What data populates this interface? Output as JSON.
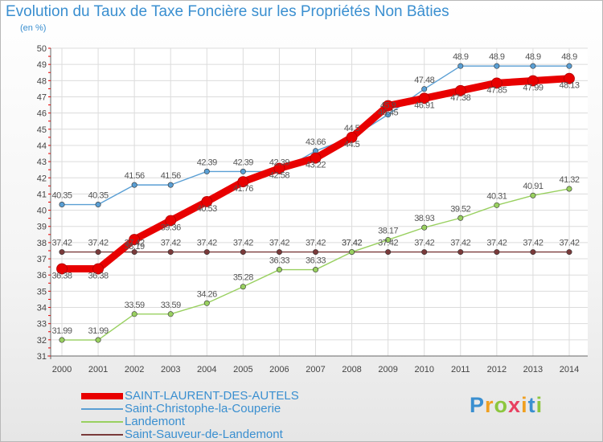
{
  "chart_data": {
    "type": "line",
    "title": "Evolution du Taux de Taxe Foncière sur les Propriétés Non Bâties",
    "subtitle": "(en %)",
    "x": [
      "2000",
      "2001",
      "2002",
      "2003",
      "2004",
      "2005",
      "2006",
      "2007",
      "2008",
      "2009",
      "2010",
      "2011",
      "2012",
      "2013",
      "2014"
    ],
    "ylim": [
      31,
      50
    ],
    "yticks": [
      31,
      32,
      33,
      34,
      35,
      36,
      37,
      38,
      39,
      40,
      41,
      42,
      43,
      44,
      45,
      46,
      47,
      48,
      49,
      50
    ],
    "grid": true,
    "legend_position": "bottom-left",
    "series": [
      {
        "name": "SAINT-LAURENT-DES-AUTELS",
        "color": "#e80000",
        "values": [
          36.38,
          36.38,
          38.19,
          39.36,
          40.53,
          41.76,
          42.58,
          43.22,
          44.5,
          46.45,
          46.91,
          47.38,
          47.85,
          47.99,
          48.13
        ],
        "labels": [
          "36.38",
          "36.38",
          "38.19",
          "39.36",
          "40.53",
          "41.76",
          "42.58",
          "43.22",
          "44.5",
          "46.45",
          "46.91",
          "47.38",
          "47.85",
          "47.99",
          "48.13"
        ]
      },
      {
        "name": "Saint-Christophe-la-Couperie",
        "color": "#5a9fd4",
        "values": [
          40.35,
          40.35,
          41.56,
          41.56,
          42.39,
          42.39,
          42.39,
          43.66,
          44.5,
          45.9,
          47.48,
          48.9,
          48.9,
          48.9,
          48.9
        ],
        "labels": [
          "40.35",
          "40.35",
          "41.56",
          "41.56",
          "42.39",
          "42.39",
          "42.39",
          "43.66",
          "44.5",
          "45.9",
          "47.48",
          "48.9",
          "48.9",
          "48.9",
          "48.9"
        ]
      },
      {
        "name": "Landemont",
        "color": "#99d060",
        "values": [
          31.99,
          31.99,
          33.59,
          33.59,
          34.26,
          35.28,
          36.33,
          36.33,
          37.42,
          38.17,
          38.93,
          39.52,
          40.31,
          40.91,
          41.32
        ],
        "labels": [
          "31.99",
          "31.99",
          "33.59",
          "33.59",
          "34.26",
          "35.28",
          "36.33",
          "36.33",
          "37.42",
          "38.17",
          "38.93",
          "39.52",
          "40.31",
          "40.91",
          "41.32"
        ]
      },
      {
        "name": "Saint-Sauveur-de-Landemont",
        "color": "#7a3a3a",
        "values": [
          37.42,
          37.42,
          37.42,
          37.42,
          37.42,
          37.42,
          37.42,
          37.42,
          37.42,
          37.42,
          37.42,
          37.42,
          37.42,
          37.42,
          37.42
        ],
        "labels": [
          "37.42",
          "37.42",
          "37.42",
          "37.42",
          "37.42",
          "37.42",
          "37.42",
          "37.42",
          "37.42",
          "37.42",
          "37.42",
          "37.42",
          "37.42",
          "37.42",
          "37.42"
        ]
      }
    ]
  },
  "legend": {
    "items": [
      {
        "label": "SAINT-LAURENT-DES-AUTELS",
        "color": "#e80000"
      },
      {
        "label": "Saint-Christophe-la-Couperie",
        "color": "#5a9fd4"
      },
      {
        "label": "Landemont",
        "color": "#99d060"
      },
      {
        "label": "Saint-Sauveur-de-Landemont",
        "color": "#7a3a3a"
      }
    ]
  },
  "logo": {
    "letters": [
      {
        "char": "P",
        "color": "#3a8fd0"
      },
      {
        "char": "r",
        "color": "#f0a020"
      },
      {
        "char": "o",
        "color": "#8cc63e"
      },
      {
        "char": "x",
        "color": "#e84060"
      },
      {
        "char": "i",
        "color": "#f0a020"
      },
      {
        "char": "t",
        "color": "#3a8fd0"
      },
      {
        "char": "i",
        "color": "#8cc63e"
      }
    ]
  }
}
